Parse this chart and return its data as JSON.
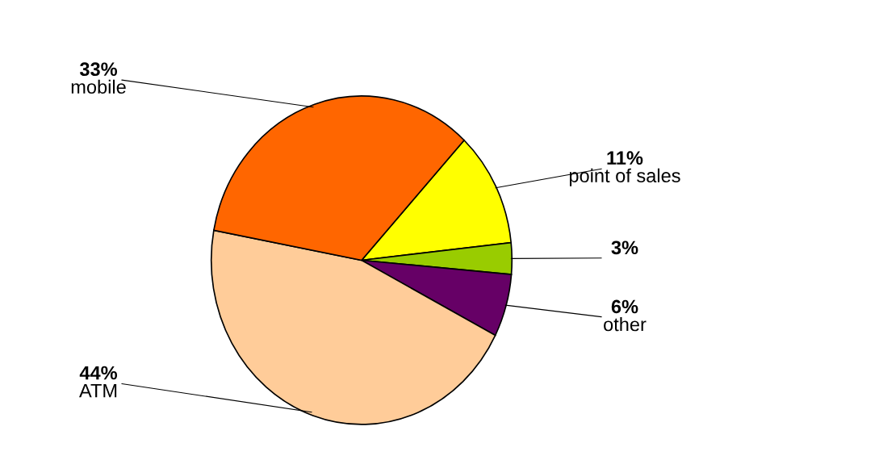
{
  "chart_data": {
    "type": "pie",
    "categories": [
      "point of sales",
      null,
      "other",
      "ATM",
      "mobile"
    ],
    "values": [
      11,
      3,
      6,
      44,
      33
    ],
    "value_labels": [
      "11%",
      "3%",
      "6%",
      "44%",
      "33%"
    ],
    "colors": [
      "#ffff00",
      "#99cc00",
      "#660066",
      "#ffcc99",
      "#ff6600"
    ],
    "legend": false
  }
}
